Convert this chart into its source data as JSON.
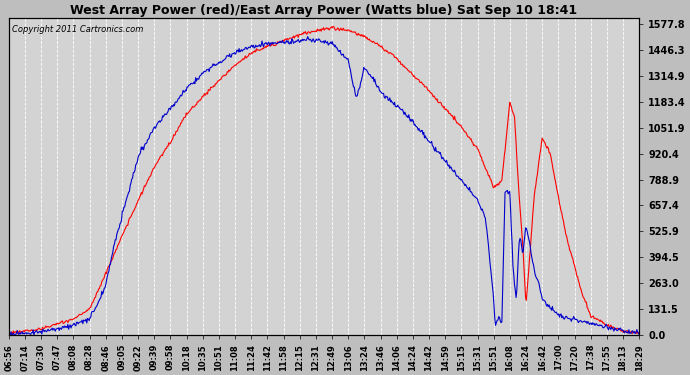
{
  "title": "West Array Power (red)/East Array Power (Watts blue) Sat Sep 10 18:41",
  "copyright": "Copyright 2011 Cartronics.com",
  "yticks": [
    0.0,
    131.5,
    263.0,
    394.5,
    525.9,
    657.4,
    788.9,
    920.4,
    1051.9,
    1183.4,
    1314.9,
    1446.3,
    1577.8
  ],
  "ymax": 1577.8,
  "ymin": 0.0,
  "bg_color": "#bebebe",
  "plot_bg": "#d3d3d3",
  "grid_color": "#ffffff",
  "red_color": "#ff0000",
  "blue_color": "#0000cc",
  "xtick_labels": [
    "06:56",
    "07:14",
    "07:30",
    "07:47",
    "08:08",
    "08:28",
    "08:46",
    "09:05",
    "09:22",
    "09:39",
    "09:58",
    "10:18",
    "10:35",
    "10:51",
    "11:08",
    "11:24",
    "11:42",
    "11:58",
    "12:15",
    "12:31",
    "12:49",
    "13:06",
    "13:24",
    "13:46",
    "14:06",
    "14:24",
    "14:42",
    "14:59",
    "15:15",
    "15:31",
    "15:51",
    "16:08",
    "16:24",
    "16:42",
    "17:00",
    "17:20",
    "17:38",
    "17:55",
    "18:13",
    "18:29"
  ]
}
